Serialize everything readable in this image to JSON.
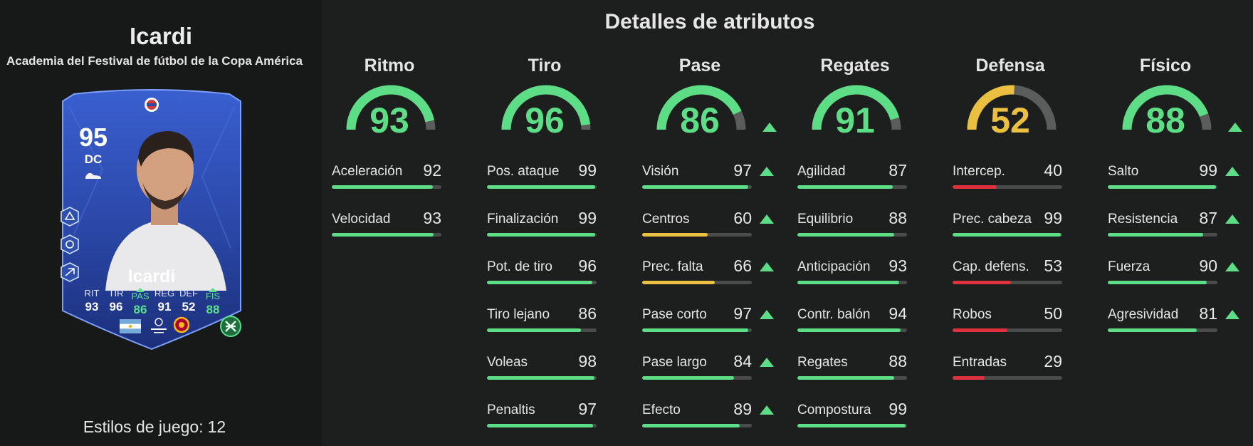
{
  "player": {
    "name": "Icardi",
    "subtitle": "Academia del Festival de fútbol de la Copa América",
    "playstyles_label": "Estilos de juego:",
    "playstyles_count": "12"
  },
  "card": {
    "rating": "95",
    "position": "DC",
    "name": "Icardi",
    "stats": [
      {
        "label": "RIT",
        "value": "93",
        "upgraded": false
      },
      {
        "label": "TIR",
        "value": "96",
        "upgraded": false
      },
      {
        "label": "PAS",
        "value": "86",
        "upgraded": true
      },
      {
        "label": "REG",
        "value": "91",
        "upgraded": false
      },
      {
        "label": "DEF",
        "value": "52",
        "upgraded": false
      },
      {
        "label": "FIS",
        "value": "88",
        "upgraded": true
      }
    ]
  },
  "details": {
    "title": "Detalles de atributos",
    "categories": [
      {
        "name": "Ritmo",
        "value": 93,
        "upgraded": false,
        "attributes": [
          {
            "label": "Aceleración",
            "value": 92,
            "upgraded": false
          },
          {
            "label": "Velocidad",
            "value": 93,
            "upgraded": false
          }
        ]
      },
      {
        "name": "Tiro",
        "value": 96,
        "upgraded": false,
        "attributes": [
          {
            "label": "Pos. ataque",
            "value": 99,
            "upgraded": false
          },
          {
            "label": "Finalización",
            "value": 99,
            "upgraded": false
          },
          {
            "label": "Pot. de tiro",
            "value": 96,
            "upgraded": false
          },
          {
            "label": "Tiro lejano",
            "value": 86,
            "upgraded": false
          },
          {
            "label": "Voleas",
            "value": 98,
            "upgraded": false
          },
          {
            "label": "Penaltis",
            "value": 97,
            "upgraded": false
          }
        ]
      },
      {
        "name": "Pase",
        "value": 86,
        "upgraded": true,
        "attributes": [
          {
            "label": "Visión",
            "value": 97,
            "upgraded": true
          },
          {
            "label": "Centros",
            "value": 60,
            "upgraded": true
          },
          {
            "label": "Prec. falta",
            "value": 66,
            "upgraded": true
          },
          {
            "label": "Pase corto",
            "value": 97,
            "upgraded": true
          },
          {
            "label": "Pase largo",
            "value": 84,
            "upgraded": true
          },
          {
            "label": "Efecto",
            "value": 89,
            "upgraded": true
          }
        ]
      },
      {
        "name": "Regates",
        "value": 91,
        "upgraded": false,
        "attributes": [
          {
            "label": "Agilidad",
            "value": 87,
            "upgraded": false
          },
          {
            "label": "Equilibrio",
            "value": 88,
            "upgraded": false
          },
          {
            "label": "Anticipación",
            "value": 93,
            "upgraded": false
          },
          {
            "label": "Contr. balón",
            "value": 94,
            "upgraded": false
          },
          {
            "label": "Regates",
            "value": 88,
            "upgraded": false
          },
          {
            "label": "Compostura",
            "value": 99,
            "upgraded": false
          }
        ]
      },
      {
        "name": "Defensa",
        "value": 52,
        "upgraded": false,
        "attributes": [
          {
            "label": "Intercep.",
            "value": 40,
            "upgraded": false
          },
          {
            "label": "Prec. cabeza",
            "value": 99,
            "upgraded": false
          },
          {
            "label": "Cap. defens.",
            "value": 53,
            "upgraded": false
          },
          {
            "label": "Robos",
            "value": 50,
            "upgraded": false
          },
          {
            "label": "Entradas",
            "value": 29,
            "upgraded": false
          }
        ]
      },
      {
        "name": "Físico",
        "value": 88,
        "upgraded": true,
        "attributes": [
          {
            "label": "Salto",
            "value": 99,
            "upgraded": true
          },
          {
            "label": "Resistencia",
            "value": 87,
            "upgraded": true
          },
          {
            "label": "Fuerza",
            "value": 90,
            "upgraded": true
          },
          {
            "label": "Agresividad",
            "value": 81,
            "upgraded": true
          }
        ]
      }
    ]
  },
  "colors": {
    "green": "#5cdd86",
    "yellow": "#ebc040",
    "red": "#e0323e",
    "track": "#4a4c4b",
    "card_blue": "#2b4aa8"
  },
  "icons": [
    "football-boot-icon",
    "playstyle-icon",
    "nation-flag-icon",
    "league-logo-icon",
    "club-crest-icon",
    "chemistry-style-icon",
    "upgrade-arrow-icon"
  ]
}
